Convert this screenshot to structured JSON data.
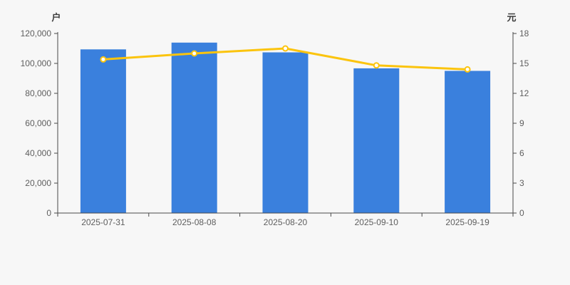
{
  "colors": {
    "background": "#f7f7f7",
    "bar": "#3a80dd",
    "line": "#fbc40e",
    "marker_fill": "#ffffff",
    "axis_line": "#4a4a4a",
    "tick_text": "#5e5e5e",
    "axis_name_text": "#3c3c3c"
  },
  "chart_data": {
    "type": "bar+line",
    "title": "",
    "categories": [
      "2025-07-31",
      "2025-08-08",
      "2025-08-20",
      "2025-09-10",
      "2025-09-19"
    ],
    "series": [
      {
        "name": "户",
        "type": "bar",
        "axis": "left",
        "color": "#3a80dd",
        "values": [
          109400,
          113900,
          107400,
          96700,
          95000
        ]
      },
      {
        "name": "元",
        "type": "line",
        "axis": "right",
        "color": "#fbc40e",
        "marker": "empty-circle",
        "values": [
          15.4,
          16.0,
          16.5,
          14.8,
          14.4
        ]
      }
    ],
    "left_axis": {
      "name": "户",
      "min": 0,
      "max": 120000,
      "tick_step": 20000,
      "tick_labels": [
        "0",
        "20,000",
        "40,000",
        "60,000",
        "80,000",
        "100,000",
        "120,000"
      ]
    },
    "right_axis": {
      "name": "元",
      "min": 0,
      "max": 18,
      "tick_step": 3,
      "tick_labels": [
        "0",
        "3",
        "6",
        "9",
        "12",
        "15",
        "18"
      ]
    },
    "grid": false,
    "legend": false
  }
}
